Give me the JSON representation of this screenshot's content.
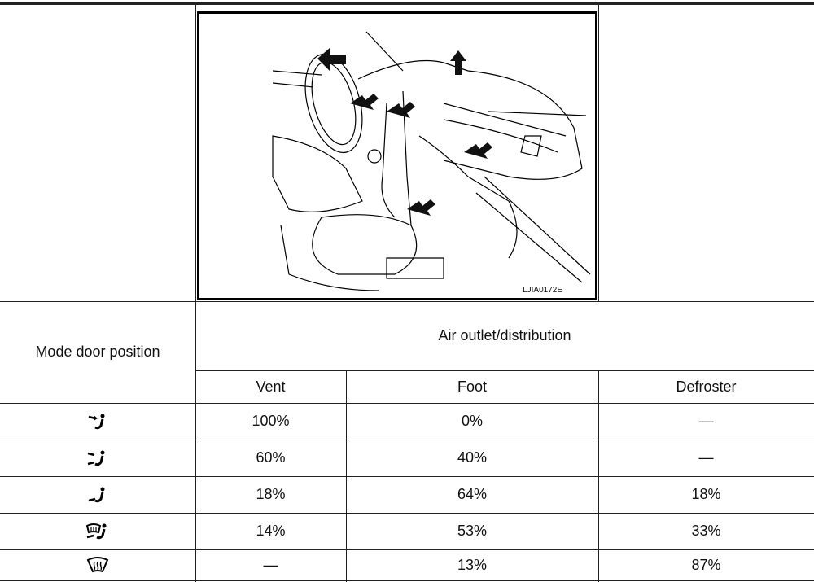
{
  "figure": {
    "label": "LJIA0172E"
  },
  "table": {
    "row_header": "Mode door position",
    "group_header": "Air outlet/distribution",
    "columns": [
      "Vent",
      "Foot",
      "Defroster"
    ],
    "rows": [
      [
        "100%",
        "0%",
        "—"
      ],
      [
        "60%",
        "40%",
        "—"
      ],
      [
        "18%",
        "64%",
        "18%"
      ],
      [
        "14%",
        "53%",
        "33%"
      ],
      [
        "—",
        "13%",
        "87%"
      ]
    ]
  }
}
